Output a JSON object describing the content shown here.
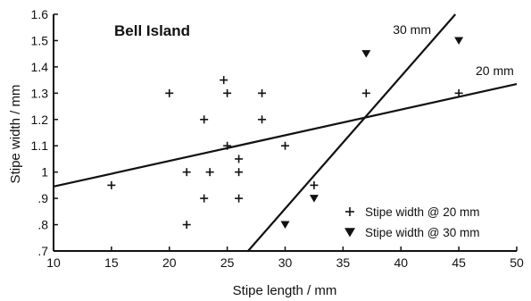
{
  "chart_data": {
    "type": "scatter",
    "title": "Bell Island",
    "xlabel": "Stipe length / mm",
    "ylabel": "Stipe width / mm",
    "xlim": [
      10,
      50
    ],
    "ylim": [
      0.7,
      1.6
    ],
    "xticks": [
      10,
      15,
      20,
      25,
      30,
      35,
      40,
      45,
      50
    ],
    "xtick_labels": [
      "10",
      "15",
      "20",
      "25",
      "30",
      "35",
      "40",
      "45",
      "50"
    ],
    "yticks": [
      0.7,
      0.8,
      0.9,
      1.0,
      1.1,
      1.2,
      1.3,
      1.4,
      1.5,
      1.6
    ],
    "ytick_labels": [
      ".7",
      ".8",
      ".9",
      "1",
      "1.1",
      "1.2",
      "1.3",
      "1.4",
      "1.5",
      "1.6"
    ],
    "grid": false,
    "legend_position": "bottom-right",
    "series": [
      {
        "name": "Stipe width @ 20 mm",
        "marker": "plus",
        "points": [
          {
            "x": 15,
            "y": 0.95
          },
          {
            "x": 20,
            "y": 1.3
          },
          {
            "x": 21.5,
            "y": 1.0
          },
          {
            "x": 21.5,
            "y": 0.8
          },
          {
            "x": 23,
            "y": 1.2
          },
          {
            "x": 23,
            "y": 0.9
          },
          {
            "x": 23.5,
            "y": 1.0
          },
          {
            "x": 24.7,
            "y": 1.35
          },
          {
            "x": 25,
            "y": 1.3
          },
          {
            "x": 25,
            "y": 1.1
          },
          {
            "x": 26,
            "y": 1.05
          },
          {
            "x": 26,
            "y": 1.0
          },
          {
            "x": 26,
            "y": 0.9
          },
          {
            "x": 28,
            "y": 1.3
          },
          {
            "x": 28,
            "y": 1.2
          },
          {
            "x": 30,
            "y": 1.1
          },
          {
            "x": 32.5,
            "y": 0.95
          },
          {
            "x": 37,
            "y": 1.3
          },
          {
            "x": 45,
            "y": 1.3
          }
        ]
      },
      {
        "name": "Stipe width @ 30 mm",
        "marker": "triangle-down",
        "points": [
          {
            "x": 30,
            "y": 0.8
          },
          {
            "x": 32.5,
            "y": 0.9
          },
          {
            "x": 37,
            "y": 1.45
          },
          {
            "x": 45,
            "y": 1.5
          }
        ]
      }
    ],
    "lines": [
      {
        "label": "20 mm",
        "from": {
          "x": 10,
          "y": 0.945
        },
        "to": {
          "x": 50,
          "y": 1.335
        }
      },
      {
        "label": "30 mm",
        "from": {
          "x": 26.8,
          "y": 0.7
        },
        "to": {
          "x": 44.7,
          "y": 1.6
        }
      }
    ]
  }
}
